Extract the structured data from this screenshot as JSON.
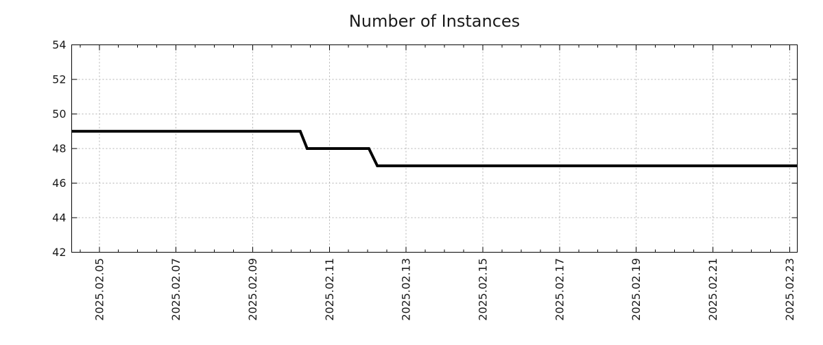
{
  "title": "Number of Instances",
  "chart_data": {
    "type": "line",
    "title": "Number of Instances",
    "xlabel": "",
    "ylabel": "",
    "legend_position": "none",
    "grid": "dotted",
    "colors": {
      "background": "#ffffff",
      "line": "#000000",
      "grid": "#b0b0b0",
      "axis": "#000000",
      "text": "#1a1a1a"
    },
    "x_axis": {
      "unit": "days since 2025-02-01 00:00",
      "min": 3.28,
      "max": 22.2,
      "major_tick_interval_days": 2,
      "minor_tick_interval_days": 0.5,
      "ticks": [
        {
          "x": 4,
          "label": "2025.02.05"
        },
        {
          "x": 6,
          "label": "2025.02.07"
        },
        {
          "x": 8,
          "label": "2025.02.09"
        },
        {
          "x": 10,
          "label": "2025.02.11"
        },
        {
          "x": 12,
          "label": "2025.02.13"
        },
        {
          "x": 14,
          "label": "2025.02.15"
        },
        {
          "x": 16,
          "label": "2025.02.17"
        },
        {
          "x": 18,
          "label": "2025.02.19"
        },
        {
          "x": 20,
          "label": "2025.02.21"
        },
        {
          "x": 22,
          "label": "2025.02.23"
        }
      ]
    },
    "y_axis": {
      "min": 42,
      "max": 54,
      "tick_interval": 2,
      "ticks": [
        42,
        44,
        46,
        48,
        50,
        52,
        54
      ]
    },
    "series": [
      {
        "name": "Number of Instances",
        "style": "step",
        "points": [
          {
            "x": 3.28,
            "y": 49,
            "approx_time": "2025-02-04 07:00"
          },
          {
            "x": 9.24,
            "y": 49,
            "approx_time": "2025-02-10 06:00"
          },
          {
            "x": 9.42,
            "y": 48,
            "approx_time": "2025-02-10 10:00"
          },
          {
            "x": 11.03,
            "y": 48,
            "approx_time": "2025-02-12 01:00"
          },
          {
            "x": 11.25,
            "y": 47,
            "approx_time": "2025-02-12 06:00"
          },
          {
            "x": 22.2,
            "y": 47,
            "approx_time": "2025-02-23 05:00"
          }
        ],
        "step_changes": [
          {
            "date": "2025-02-10",
            "from": 49,
            "to": 48
          },
          {
            "date": "2025-02-12",
            "from": 48,
            "to": 47
          }
        ]
      }
    ]
  }
}
